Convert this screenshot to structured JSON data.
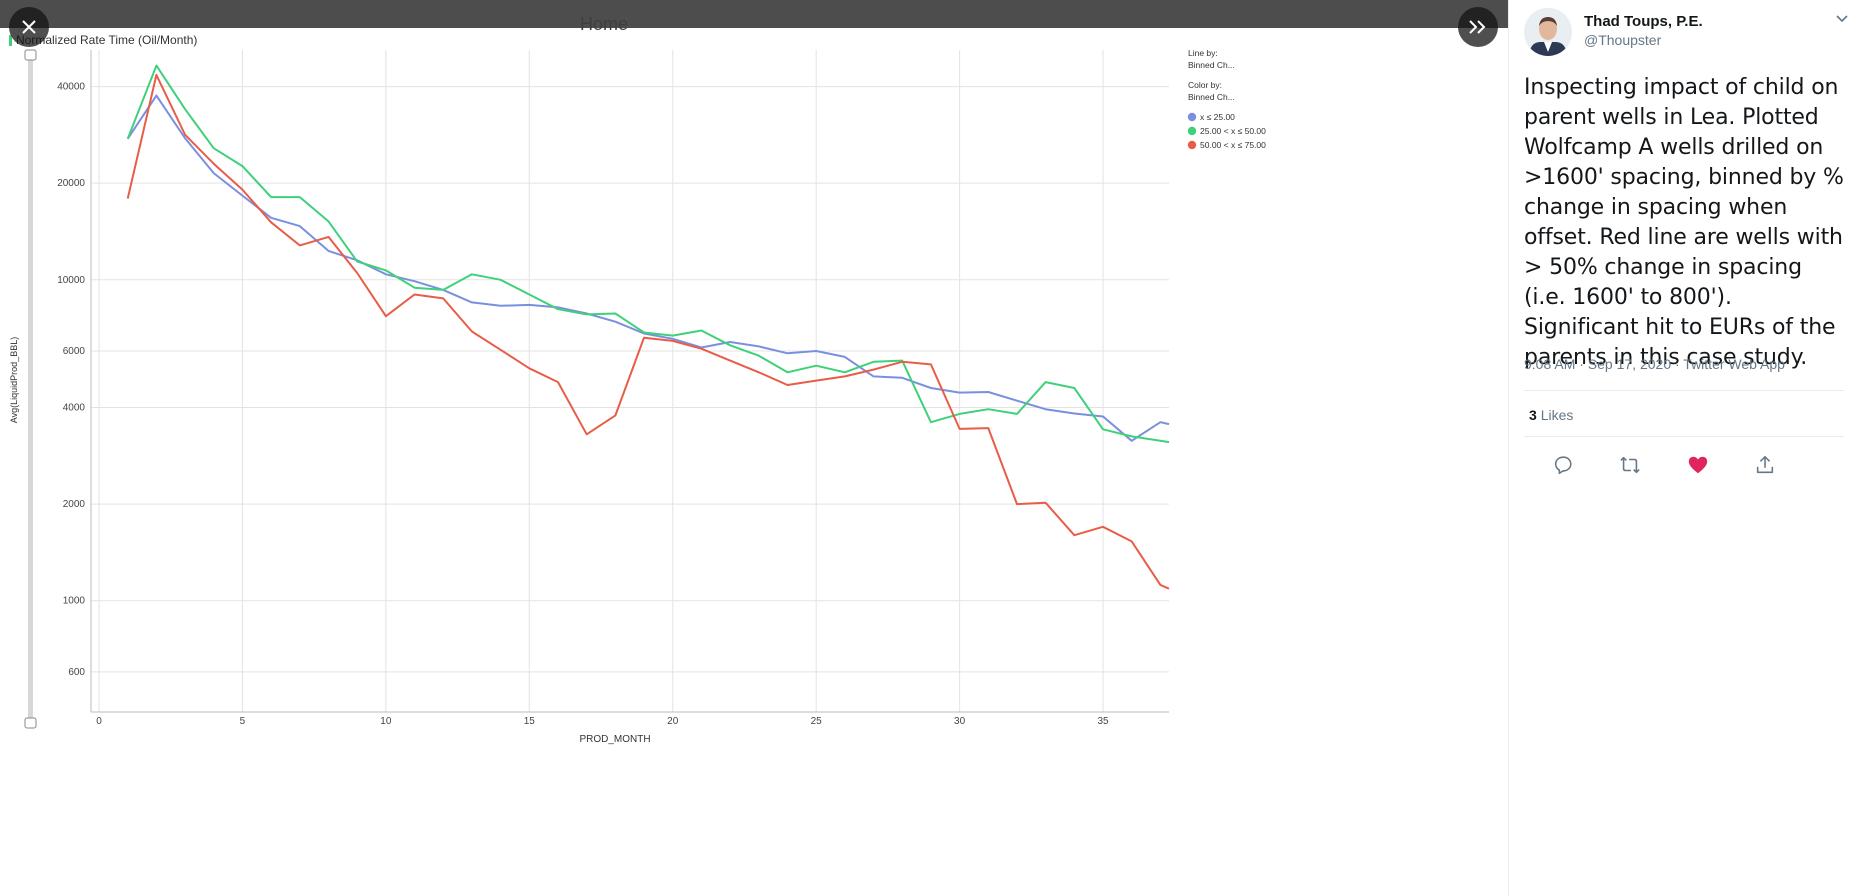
{
  "colors": {
    "green": "#3fd17a",
    "blue": "#7b8fe0",
    "red": "#e85d48",
    "like": "#e0245e"
  },
  "topbar": {
    "ghost_home": "Home"
  },
  "chart_data": {
    "type": "line",
    "title": "Normalized Rate Time (Oil/Month)",
    "xlabel": "PROD_MONTH",
    "ylabel": "Avg(LiquidProd_BBL)",
    "y_scale": "log",
    "xlim": [
      0,
      37.3
    ],
    "ylim": [
      450,
      52000
    ],
    "x_ticks": [
      "0",
      "5",
      "10",
      "15",
      "20",
      "25",
      "30",
      "35"
    ],
    "x_tick_values": [
      0,
      5,
      10,
      15,
      20,
      25,
      30,
      35
    ],
    "y_ticks": [
      "600",
      "1000",
      "2000",
      "4000",
      "6000",
      "10000",
      "20000",
      "40000"
    ],
    "y_tick_values": [
      600,
      1000,
      2000,
      4000,
      6000,
      10000,
      20000,
      40000
    ],
    "grid": true,
    "legend": {
      "line_by_label": "Line by:",
      "line_by_value": "Binned Ch...",
      "color_by_label": "Color by:",
      "color_by_value": "Binned Ch...",
      "position": "top-right"
    },
    "series": [
      {
        "name": "x ≤ 25.00",
        "color": "#7b8fe0",
        "x": [
          1,
          2,
          3,
          4,
          5,
          6,
          7,
          8,
          9,
          10,
          11,
          12,
          13,
          14,
          15,
          16,
          17,
          18,
          19,
          20,
          21,
          22,
          23,
          24,
          25,
          26,
          27,
          28,
          29,
          30,
          31,
          32,
          33,
          34,
          35,
          36,
          37,
          37.3
        ],
        "y": [
          27500,
          37500,
          27600,
          21500,
          18300,
          15600,
          14700,
          12300,
          11500,
          10400,
          9900,
          9300,
          8500,
          8300,
          8350,
          8200,
          7850,
          7400,
          6800,
          6550,
          6150,
          6400,
          6200,
          5900,
          6000,
          5750,
          5000,
          4950,
          4600,
          4450,
          4470,
          4200,
          3950,
          3830,
          3750,
          3150,
          3600,
          3550
        ]
      },
      {
        "name": "25.00 < x ≤ 50.00",
        "color": "#3fd17a",
        "x": [
          1,
          2,
          3,
          4,
          5,
          6,
          7,
          8,
          9,
          10,
          11,
          12,
          13,
          14,
          15,
          16,
          17,
          18,
          19,
          20,
          21,
          22,
          23,
          24,
          25,
          26,
          27,
          28,
          29,
          30,
          31,
          32,
          33,
          34,
          35,
          36,
          37,
          37.3
        ],
        "y": [
          27500,
          46500,
          34000,
          25700,
          22600,
          18100,
          18100,
          15200,
          11400,
          10700,
          9450,
          9300,
          10400,
          10000,
          9000,
          8100,
          7800,
          7850,
          6850,
          6700,
          6950,
          6250,
          5800,
          5150,
          5400,
          5150,
          5550,
          5600,
          3600,
          3820,
          3950,
          3820,
          4800,
          4600,
          3420,
          3250,
          3150,
          3120
        ]
      },
      {
        "name": "50.00 < x ≤ 75.00",
        "color": "#e85d48",
        "x": [
          1,
          2,
          3,
          4,
          5,
          6,
          7,
          8,
          9,
          10,
          11,
          12,
          13,
          14,
          15,
          16,
          17,
          18,
          19,
          20,
          21,
          22,
          23,
          24,
          25,
          26,
          27,
          28,
          29,
          30,
          31,
          32,
          33,
          34,
          35,
          36,
          37,
          37.3
        ],
        "y": [
          17900,
          43500,
          28300,
          23000,
          19100,
          15100,
          12800,
          13600,
          10500,
          7700,
          9000,
          8750,
          6900,
          6050,
          5300,
          4800,
          3300,
          3780,
          6600,
          6450,
          6100,
          5600,
          5150,
          4700,
          4850,
          5000,
          5250,
          5550,
          5450,
          3430,
          3450,
          2000,
          2020,
          1600,
          1700,
          1530,
          1120,
          1090
        ]
      }
    ]
  },
  "tweet": {
    "name": "Thad Toups, P.E.",
    "handle": "@Thoupster",
    "text": "Inspecting impact of child on parent wells in Lea.  Plotted Wolfcamp A wells drilled on >1600' spacing, binned by % change in spacing when offset.  Red line are wells with > 50% change in spacing (i.e. 1600' to 800').  Significant hit to EURs of the parents in this case study.",
    "meta": "9:08 AM · Sep 17, 2020 · Twitter Web App",
    "likes_count": "3",
    "likes_label": "Likes"
  }
}
